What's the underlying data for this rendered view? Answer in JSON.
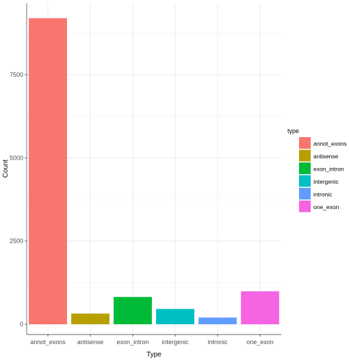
{
  "chart_data": {
    "type": "bar",
    "xlabel": "Type",
    "ylabel": "Count",
    "categories": [
      "annot_exons",
      "antisense",
      "exon_intron",
      "intergenic",
      "intronic",
      "one_exon"
    ],
    "values": [
      9200,
      320,
      820,
      460,
      200,
      990
    ],
    "ylim": [
      0,
      9650
    ],
    "yticks": [
      0,
      2500,
      5000,
      7500
    ],
    "grid": true,
    "legend": {
      "title": "type",
      "placement": "right",
      "entries": [
        "annot_exons",
        "antisense",
        "exon_intron",
        "intergenic",
        "intronic",
        "one_exon"
      ]
    },
    "colors": [
      "#F8766D",
      "#B79F00",
      "#00BA38",
      "#00BFC4",
      "#619CFF",
      "#F564E3"
    ]
  }
}
